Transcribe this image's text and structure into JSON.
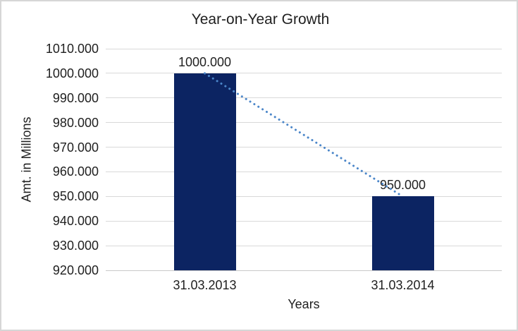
{
  "chart_data": {
    "type": "bar",
    "title": "Year-on-Year Growth",
    "xlabel": "Years",
    "ylabel": "Amt. in Millions",
    "categories": [
      "31.03.2013",
      "31.03.2014"
    ],
    "values": [
      1000,
      950
    ],
    "value_labels": [
      "1000.000",
      "950.000"
    ],
    "ylim": [
      920,
      1010
    ],
    "ytick_step": 10,
    "ytick_labels": [
      "1010.000",
      "1000.000",
      "990.000",
      "980.000",
      "970.000",
      "960.000",
      "950.000",
      "940.000",
      "930.000",
      "920.000"
    ],
    "grid": true,
    "legend": false,
    "trendline": {
      "style": "dotted",
      "color": "#4b86c9",
      "connects": "tops of bars from 1000.000 down to 950.000"
    },
    "colors": {
      "bar": "#0c2462",
      "gridline": "#d9d9d9",
      "axis_line": "#c9c9c9",
      "text": "#1f1f1f",
      "frame_border": "#d6d6d6",
      "background": "#ffffff"
    }
  }
}
